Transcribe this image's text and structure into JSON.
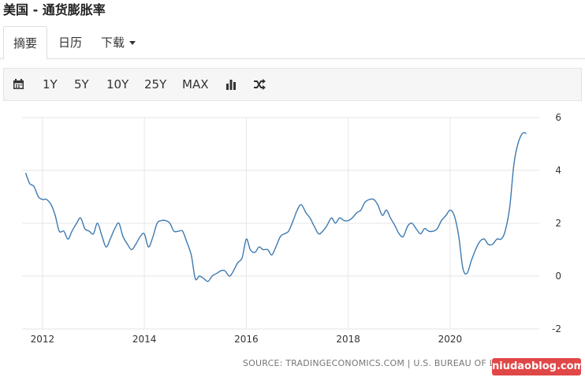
{
  "title": "美国 - 通货膨胀率",
  "tabs": [
    {
      "label": "摘要",
      "active": true
    },
    {
      "label": "日历",
      "active": false
    },
    {
      "label": "下载",
      "active": false
    }
  ],
  "toolbar": {
    "calendar_icon": "calendar-icon",
    "ranges": [
      "1Y",
      "5Y",
      "10Y",
      "25Y",
      "MAX"
    ],
    "chart_type_icon": "bar-chart-icon",
    "compare_icon": "shuffle-icon"
  },
  "source": "SOURCE: TRADINGECONOMICS.COM | U.S. BUREAU OF LABOR STATISTICS",
  "watermark": "niudaoblog.com",
  "colors": {
    "line": "#3d7ab0",
    "grid": "#e6e6e6",
    "watermark": "#e04747"
  },
  "chart_data": {
    "type": "line",
    "title": "",
    "xlabel": "",
    "ylabel": "",
    "x_ticks": [
      "2012",
      "2014",
      "2016",
      "2018",
      "2020"
    ],
    "y_ticks": [
      6,
      4,
      2,
      0,
      -2
    ],
    "ylim": [
      -2,
      6
    ],
    "xlim": [
      2011.6,
      2021.75
    ],
    "grid": true,
    "series": [
      {
        "x": [
          2011.67,
          2011.75,
          2011.83,
          2011.92,
          2012.0,
          2012.08,
          2012.17,
          2012.25,
          2012.33,
          2012.42,
          2012.5,
          2012.58,
          2012.67,
          2012.75,
          2012.83,
          2012.92,
          2013.0,
          2013.08,
          2013.17,
          2013.25,
          2013.33,
          2013.42,
          2013.5,
          2013.58,
          2013.67,
          2013.75,
          2013.83,
          2013.92,
          2014.0,
          2014.08,
          2014.17,
          2014.25,
          2014.33,
          2014.42,
          2014.5,
          2014.58,
          2014.67,
          2014.75,
          2014.83,
          2014.92,
          2015.0,
          2015.08,
          2015.17,
          2015.25,
          2015.33,
          2015.42,
          2015.5,
          2015.58,
          2015.67,
          2015.75,
          2015.83,
          2015.92,
          2016.0,
          2016.08,
          2016.17,
          2016.25,
          2016.33,
          2016.42,
          2016.5,
          2016.58,
          2016.67,
          2016.75,
          2016.83,
          2016.92,
          2017.0,
          2017.08,
          2017.17,
          2017.25,
          2017.33,
          2017.42,
          2017.5,
          2017.58,
          2017.67,
          2017.75,
          2017.83,
          2017.92,
          2018.0,
          2018.08,
          2018.17,
          2018.25,
          2018.33,
          2018.42,
          2018.5,
          2018.58,
          2018.67,
          2018.75,
          2018.83,
          2018.92,
          2019.0,
          2019.08,
          2019.17,
          2019.25,
          2019.33,
          2019.42,
          2019.5,
          2019.58,
          2019.67,
          2019.75,
          2019.83,
          2019.92,
          2020.0,
          2020.08,
          2020.17,
          2020.25,
          2020.33,
          2020.42,
          2020.5,
          2020.58,
          2020.67,
          2020.75,
          2020.83,
          2020.92,
          2021.0,
          2021.08,
          2021.17,
          2021.25,
          2021.33,
          2021.42,
          2021.5
        ],
        "y": [
          3.9,
          3.5,
          3.4,
          3.0,
          2.9,
          2.9,
          2.7,
          2.3,
          1.7,
          1.7,
          1.4,
          1.7,
          2.0,
          2.2,
          1.8,
          1.7,
          1.6,
          2.0,
          1.5,
          1.1,
          1.4,
          1.8,
          2.0,
          1.5,
          1.2,
          1.0,
          1.2,
          1.5,
          1.6,
          1.1,
          1.5,
          2.0,
          2.1,
          2.1,
          2.0,
          1.7,
          1.7,
          1.7,
          1.3,
          0.8,
          -0.1,
          0.0,
          -0.1,
          -0.2,
          0.0,
          0.1,
          0.2,
          0.2,
          0.0,
          0.2,
          0.5,
          0.7,
          1.4,
          1.0,
          0.9,
          1.1,
          1.0,
          1.0,
          0.8,
          1.1,
          1.5,
          1.6,
          1.7,
          2.1,
          2.5,
          2.7,
          2.4,
          2.2,
          1.9,
          1.6,
          1.7,
          1.9,
          2.2,
          2.0,
          2.2,
          2.1,
          2.1,
          2.2,
          2.4,
          2.5,
          2.8,
          2.9,
          2.9,
          2.7,
          2.3,
          2.5,
          2.2,
          1.9,
          1.6,
          1.5,
          1.9,
          2.0,
          1.8,
          1.6,
          1.8,
          1.7,
          1.7,
          1.8,
          2.1,
          2.3,
          2.5,
          2.3,
          1.5,
          0.3,
          0.1,
          0.6,
          1.0,
          1.3,
          1.4,
          1.2,
          1.2,
          1.4,
          1.4,
          1.7,
          2.6,
          4.2,
          5.0,
          5.4,
          5.4
        ]
      }
    ]
  }
}
